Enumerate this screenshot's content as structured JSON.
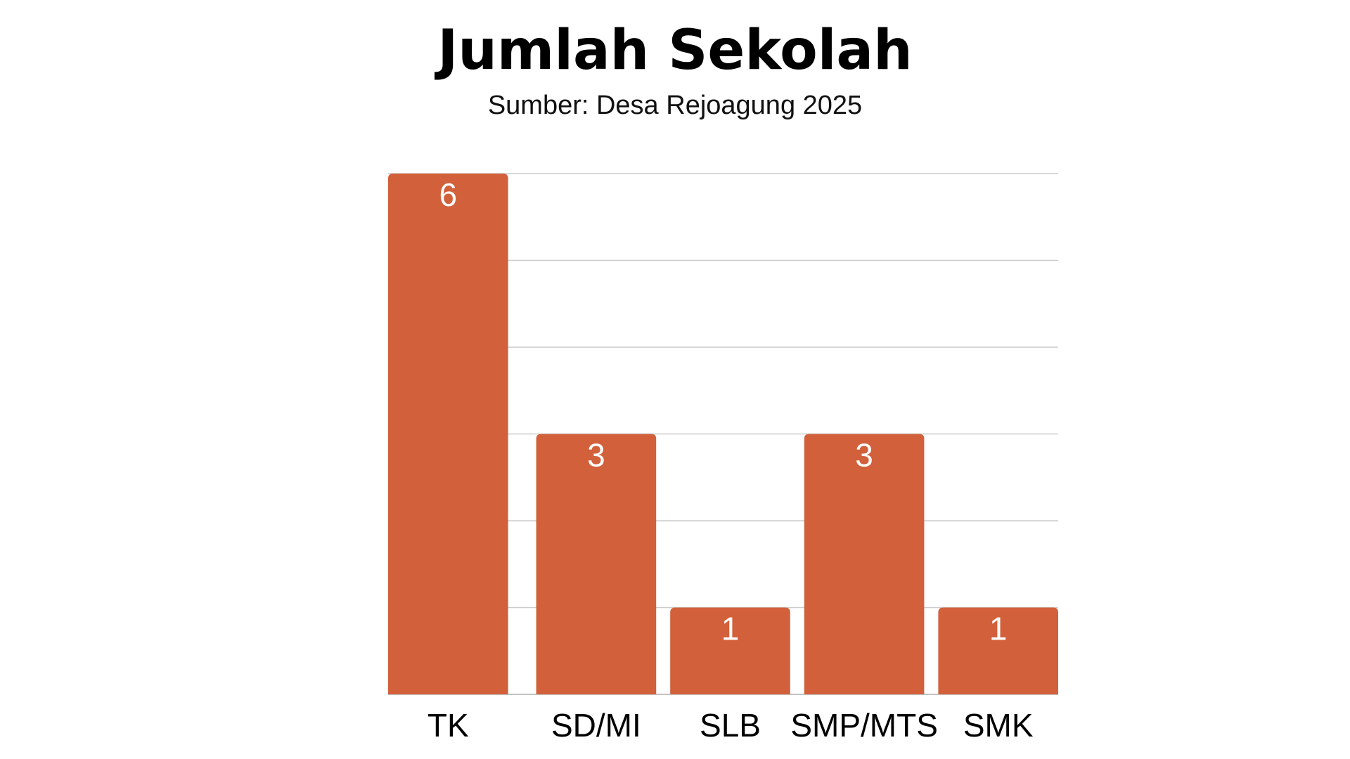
{
  "chart_data": {
    "type": "bar",
    "title": "Jumlah Sekolah",
    "subtitle": "Sumber: Desa Rejoagung 2025",
    "categories": [
      "TK",
      "SD/MI",
      "SLB",
      "SMP/MTS",
      "SMK"
    ],
    "values": [
      6,
      3,
      1,
      3,
      1
    ],
    "xlabel": "",
    "ylabel": "",
    "ylim": [
      0,
      6
    ],
    "grid": true,
    "bar_color": "#d2603a",
    "data_label_color": "#ffffff",
    "grid_color": "#cccccc"
  }
}
